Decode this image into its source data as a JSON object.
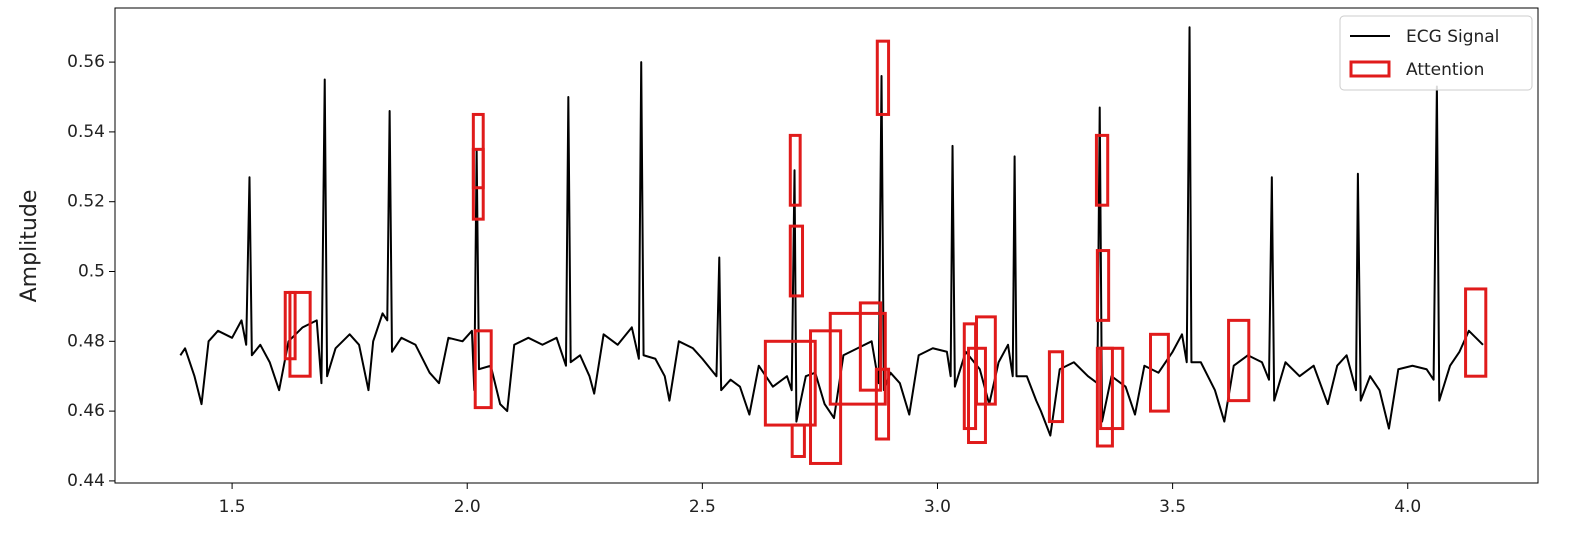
{
  "chart_data": {
    "type": "line",
    "ylabel": "Amplitude",
    "legend": "upper right",
    "xlim": [
      1.251,
      4.277
    ],
    "ylim": [
      0.4394,
      0.5755
    ],
    "xticks": [
      1.5,
      {
        "value": 2,
        "label": "2.0"
      },
      2.5,
      {
        "value": 3,
        "label": "3.0"
      },
      3.5,
      {
        "value": 4,
        "label": "4.0"
      }
    ],
    "yticks": [
      0.44,
      0.46,
      0.48,
      0.5,
      0.52,
      0.54,
      0.56
    ],
    "x": [
      1.39,
      1.4,
      1.42,
      1.435,
      1.45,
      1.47,
      1.5,
      1.52,
      1.53,
      1.537,
      1.542,
      1.56,
      1.58,
      1.6,
      1.62,
      1.65,
      1.68,
      1.69,
      1.697,
      1.702,
      1.72,
      1.75,
      1.77,
      1.79,
      1.8,
      1.82,
      1.83,
      1.835,
      1.84,
      1.86,
      1.89,
      1.92,
      1.94,
      1.96,
      1.99,
      2.01,
      2.015,
      2.02,
      2.025,
      2.05,
      2.07,
      2.085,
      2.1,
      2.13,
      2.16,
      2.19,
      2.21,
      2.215,
      2.22,
      2.24,
      2.26,
      2.27,
      2.29,
      2.32,
      2.35,
      2.365,
      2.37,
      2.375,
      2.4,
      2.42,
      2.43,
      2.45,
      2.48,
      2.5,
      2.53,
      2.536,
      2.54,
      2.56,
      2.58,
      2.6,
      2.62,
      2.65,
      2.68,
      2.69,
      2.696,
      2.7,
      2.72,
      2.74,
      2.76,
      2.78,
      2.8,
      2.83,
      2.86,
      2.875,
      2.881,
      2.886,
      2.9,
      2.92,
      2.94,
      2.96,
      2.99,
      3.02,
      3.028,
      3.032,
      3.037,
      3.06,
      3.09,
      3.11,
      3.13,
      3.15,
      3.16,
      3.164,
      3.168,
      3.19,
      3.21,
      3.22,
      3.24,
      3.26,
      3.29,
      3.32,
      3.34,
      3.345,
      3.35,
      3.37,
      3.4,
      3.42,
      3.44,
      3.47,
      3.5,
      3.52,
      3.53,
      3.536,
      3.54,
      3.56,
      3.59,
      3.61,
      3.63,
      3.66,
      3.69,
      3.705,
      3.711,
      3.716,
      3.74,
      3.77,
      3.8,
      3.83,
      3.85,
      3.87,
      3.89,
      3.894,
      3.9,
      3.92,
      3.94,
      3.96,
      3.98,
      4.01,
      4.04,
      4.055,
      4.062,
      4.067,
      4.09,
      4.11,
      4.13,
      4.16
    ],
    "series": [
      {
        "name": "ECG Signal",
        "color": "#000000",
        "values": [
          0.476,
          0.478,
          0.47,
          0.462,
          0.48,
          0.483,
          0.481,
          0.486,
          0.479,
          0.527,
          0.476,
          0.479,
          0.474,
          0.466,
          0.48,
          0.484,
          0.486,
          0.468,
          0.555,
          0.47,
          0.478,
          0.482,
          0.479,
          0.466,
          0.48,
          0.488,
          0.486,
          0.546,
          0.477,
          0.481,
          0.479,
          0.471,
          0.468,
          0.481,
          0.48,
          0.483,
          0.466,
          0.535,
          0.472,
          0.473,
          0.462,
          0.46,
          0.479,
          0.481,
          0.479,
          0.481,
          0.473,
          0.55,
          0.474,
          0.476,
          0.47,
          0.465,
          0.482,
          0.479,
          0.484,
          0.475,
          0.56,
          0.476,
          0.475,
          0.47,
          0.463,
          0.48,
          0.478,
          0.475,
          0.47,
          0.504,
          0.466,
          0.469,
          0.467,
          0.459,
          0.473,
          0.467,
          0.47,
          0.466,
          0.529,
          0.457,
          0.47,
          0.471,
          0.462,
          0.458,
          0.476,
          0.478,
          0.48,
          0.468,
          0.556,
          0.466,
          0.471,
          0.468,
          0.459,
          0.476,
          0.478,
          0.477,
          0.47,
          0.536,
          0.467,
          0.477,
          0.472,
          0.462,
          0.474,
          0.479,
          0.47,
          0.533,
          0.47,
          0.47,
          0.463,
          0.46,
          0.453,
          0.472,
          0.474,
          0.47,
          0.468,
          0.547,
          0.457,
          0.47,
          0.467,
          0.459,
          0.473,
          0.471,
          0.477,
          0.482,
          0.474,
          0.57,
          0.474,
          0.474,
          0.466,
          0.457,
          0.473,
          0.476,
          0.474,
          0.469,
          0.527,
          0.463,
          0.474,
          0.47,
          0.473,
          0.462,
          0.473,
          0.476,
          0.466,
          0.528,
          0.463,
          0.47,
          0.466,
          0.455,
          0.472,
          0.473,
          0.472,
          0.469,
          0.553,
          0.463,
          0.473,
          0.477,
          0.483,
          0.479
        ]
      }
    ],
    "attention": {
      "name": "Attention",
      "color": "#e01b1b",
      "boxes": [
        [
          1.613,
          1.634,
          0.475,
          0.494
        ],
        [
          1.623,
          1.666,
          0.47,
          0.494
        ],
        [
          2.013,
          2.034,
          0.524,
          0.545
        ],
        [
          2.013,
          2.034,
          0.515,
          0.535
        ],
        [
          2.017,
          2.051,
          0.461,
          0.483
        ],
        [
          2.634,
          2.74,
          0.456,
          0.48
        ],
        [
          2.687,
          2.708,
          0.519,
          0.539
        ],
        [
          2.687,
          2.713,
          0.493,
          0.513
        ],
        [
          2.691,
          2.717,
          0.447,
          0.456
        ],
        [
          2.73,
          2.794,
          0.445,
          0.483
        ],
        [
          2.772,
          2.889,
          0.462,
          0.488
        ],
        [
          2.836,
          2.879,
          0.466,
          0.491
        ],
        [
          2.872,
          2.896,
          0.545,
          0.566
        ],
        [
          2.87,
          2.896,
          0.452,
          0.472
        ],
        [
          3.057,
          3.081,
          0.455,
          0.485
        ],
        [
          3.066,
          3.102,
          0.451,
          0.478
        ],
        [
          3.083,
          3.123,
          0.462,
          0.487
        ],
        [
          3.238,
          3.266,
          0.457,
          0.477
        ],
        [
          3.338,
          3.362,
          0.519,
          0.539
        ],
        [
          3.34,
          3.364,
          0.486,
          0.506
        ],
        [
          3.34,
          3.372,
          0.45,
          0.478
        ],
        [
          3.347,
          3.394,
          0.455,
          0.478
        ],
        [
          3.453,
          3.491,
          0.46,
          0.482
        ],
        [
          3.619,
          3.662,
          0.463,
          0.486
        ],
        [
          4.123,
          4.166,
          0.47,
          0.495
        ]
      ]
    }
  }
}
